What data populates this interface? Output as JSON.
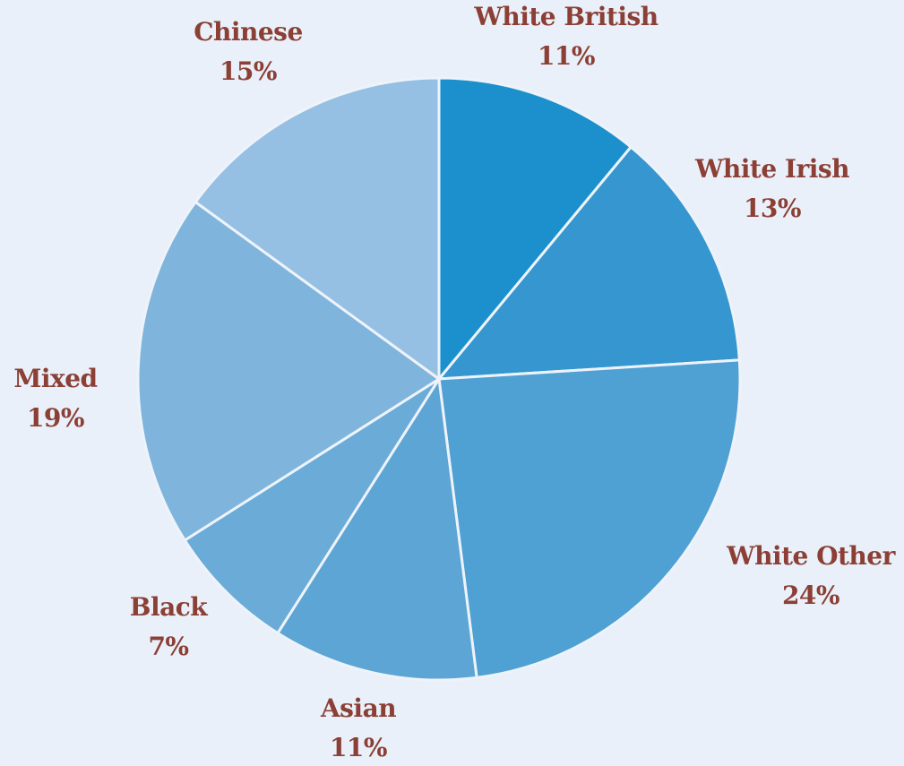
{
  "chart_data": {
    "type": "pie",
    "title": "",
    "start": "12 o'clock",
    "direction": "clockwise",
    "slices": [
      {
        "label": "White British",
        "value": 11,
        "value_label": "11%",
        "color": "#1b90cd"
      },
      {
        "label": "White Irish",
        "value": 13,
        "value_label": "13%",
        "color": "#3596d0"
      },
      {
        "label": "White Other",
        "value": 24,
        "value_label": "24%",
        "color": "#4fa0d3"
      },
      {
        "label": "Asian",
        "value": 11,
        "value_label": "11%",
        "color": "#5ca5d5"
      },
      {
        "label": "Black",
        "value": 7,
        "value_label": "7%",
        "color": "#6aabd8"
      },
      {
        "label": "Mixed",
        "value": 19,
        "value_label": "19%",
        "color": "#7fb5dc"
      },
      {
        "label": "Chinese",
        "value": 15,
        "value_label": "15%",
        "color": "#95c0e3"
      }
    ]
  }
}
